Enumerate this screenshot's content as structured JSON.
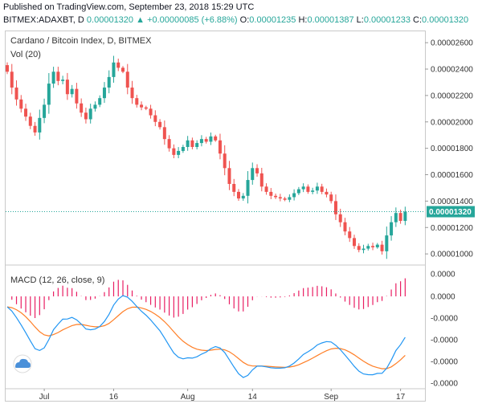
{
  "header": {
    "published": "Published on TradingView.com, September 23, 2018 15:29 UTC",
    "symbol": "BITMEX:ADAXBT, D",
    "last": "0.00001320",
    "change": "+0.00000085 (+6.88%)",
    "o_label": "O:",
    "o_value": "0.00001235",
    "h_label": "H:",
    "h_value": "0.00001387",
    "l_label": "L:",
    "l_value": "0.00001233",
    "c_label": "C:",
    "c_value": "0.00001320"
  },
  "chart_data": [
    {
      "type": "candlestick",
      "title": "Cardano / Bitcoin Index, D, BITMEX",
      "volume_label": "Vol (20)",
      "y_ticks": [
        "0.00001000",
        "0.00001200",
        "0.00001400",
        "0.00001600",
        "0.00001800",
        "0.00002000",
        "0.00002200",
        "0.00002400",
        "0.00002600"
      ],
      "ylim": [
        9.4e-06,
        2.68e-05
      ],
      "last_price_label": "0.00001320",
      "last_price": 1.32e-05,
      "x_ticks": [
        {
          "label": "Jul",
          "index": 8
        },
        {
          "label": "16",
          "index": 23
        },
        {
          "label": "Aug",
          "index": 39
        },
        {
          "label": "14",
          "index": 53
        },
        {
          "label": "Sep",
          "index": 70
        },
        {
          "label": "17",
          "index": 85
        }
      ],
      "close": [
        2.38e-05,
        2.26e-05,
        2.17e-05,
        2.1e-05,
        2.04e-05,
        1.97e-05,
        1.92e-05,
        2.03e-05,
        2.13e-05,
        2.29e-05,
        2.38e-05,
        2.31e-05,
        2.32e-05,
        2.21e-05,
        2.25e-05,
        2.14e-05,
        2.07e-05,
        2.02e-05,
        2.1e-05,
        2.13e-05,
        2.18e-05,
        2.26e-05,
        2.34e-05,
        2.45e-05,
        2.41e-05,
        2.38e-05,
        2.26e-05,
        2.18e-05,
        2.13e-05,
        2.11e-05,
        2.1e-05,
        2.05e-05,
        2e-05,
        1.96e-05,
        1.87e-05,
        1.8e-05,
        1.75e-05,
        1.78e-05,
        1.81e-05,
        1.86e-05,
        1.81e-05,
        1.84e-05,
        1.87e-05,
        1.85e-05,
        1.89e-05,
        1.86e-05,
        1.76e-05,
        1.65e-05,
        1.53e-05,
        1.47e-05,
        1.42e-05,
        1.44e-05,
        1.56e-05,
        1.65e-05,
        1.61e-05,
        1.51e-05,
        1.47e-05,
        1.44e-05,
        1.43e-05,
        1.42e-05,
        1.41e-05,
        1.43e-05,
        1.46e-05,
        1.49e-05,
        1.51e-05,
        1.47e-05,
        1.48e-05,
        1.51e-05,
        1.47e-05,
        1.45e-05,
        1.4e-05,
        1.3e-05,
        1.24e-05,
        1.17e-05,
        1.12e-05,
        1.06e-05,
        1.03e-05,
        1.04e-05,
        1.06e-05,
        1.05e-05,
        1.07e-05,
        1.02e-05,
        1.14e-05,
        1.24e-05,
        1.31e-05,
        1.25e-05,
        1.32e-05
      ]
    },
    {
      "type": "macd",
      "title": "MACD (12, 26, close, 9)",
      "y_ticks": [
        "0.0000",
        "0.0000",
        "-0.0000",
        "-0.0000",
        "-0.0000",
        "-0.0000"
      ]
    }
  ],
  "colors": {
    "up": "#26a69a",
    "down": "#ef5350",
    "macd_line": "#2196f3",
    "signal_line": "#ff7f27",
    "histogram": "#e91e63",
    "last_price_badge": "#26a69a"
  }
}
